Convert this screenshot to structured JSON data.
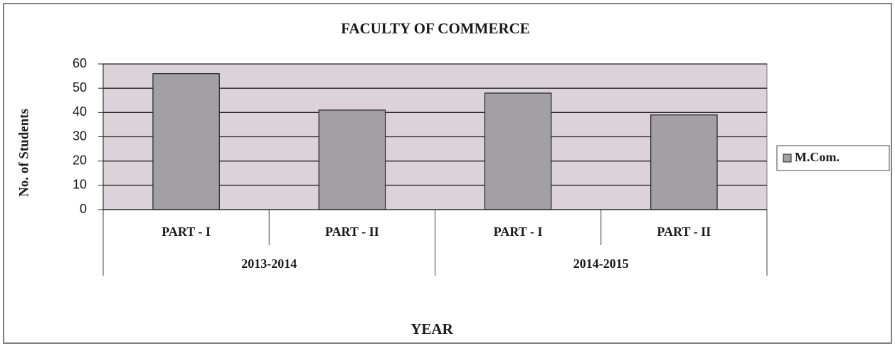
{
  "chart_data": {
    "type": "bar",
    "title": "FACULTY OF COMMERCE",
    "x_label": "YEAR",
    "y_label": "No. of Students",
    "category_groups": [
      {
        "name": "2013-2014",
        "categories": [
          "PART - I",
          "PART - II"
        ]
      },
      {
        "name": "2014-2015",
        "categories": [
          "PART - I",
          "PART - II"
        ]
      }
    ],
    "series": [
      {
        "name": "M.Com.",
        "color": "#a3a0a5",
        "values": [
          56,
          41,
          48,
          39
        ]
      }
    ],
    "ylim": [
      0,
      60
    ],
    "yticks": [
      0,
      10,
      20,
      30,
      40,
      50,
      60
    ],
    "grid": true,
    "plot_background": "#dcd2d9",
    "legend": "right"
  }
}
